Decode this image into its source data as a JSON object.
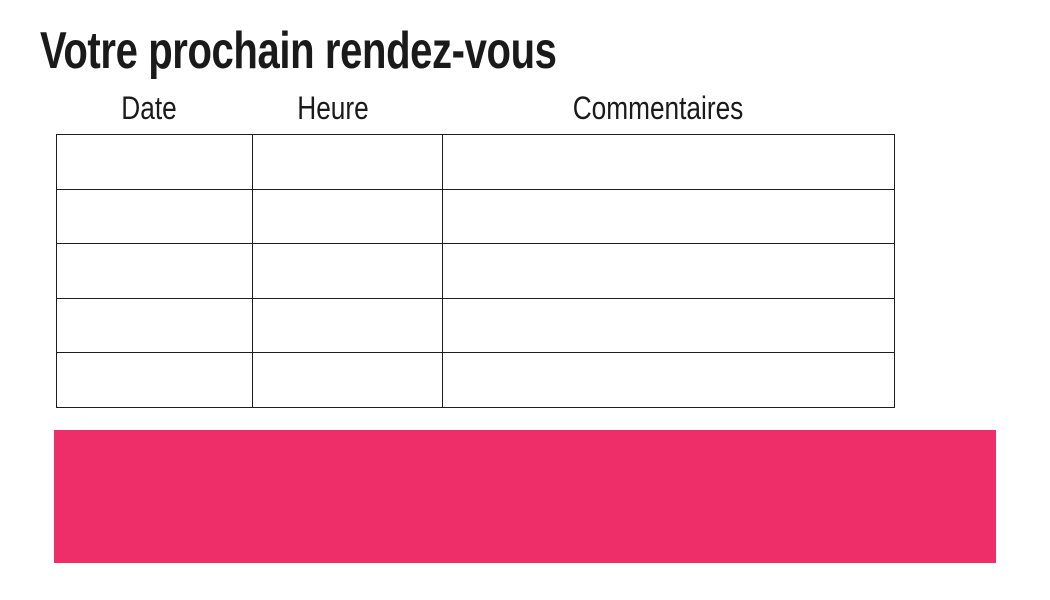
{
  "page": {
    "title": "Votre prochain rendez-vous"
  },
  "table": {
    "columns": [
      {
        "label": "Date"
      },
      {
        "label": "Heure"
      },
      {
        "label": "Commentaires"
      }
    ],
    "rows": [
      [
        "",
        "",
        ""
      ],
      [
        "",
        "",
        ""
      ],
      [
        "",
        "",
        ""
      ],
      [
        "",
        "",
        ""
      ],
      [
        "",
        "",
        ""
      ]
    ]
  },
  "banner": {
    "text": ""
  },
  "colors": {
    "accent_pink": "#ED2E68",
    "table_border": "#1d1d1d",
    "text_dark": "#1a1a1a"
  }
}
